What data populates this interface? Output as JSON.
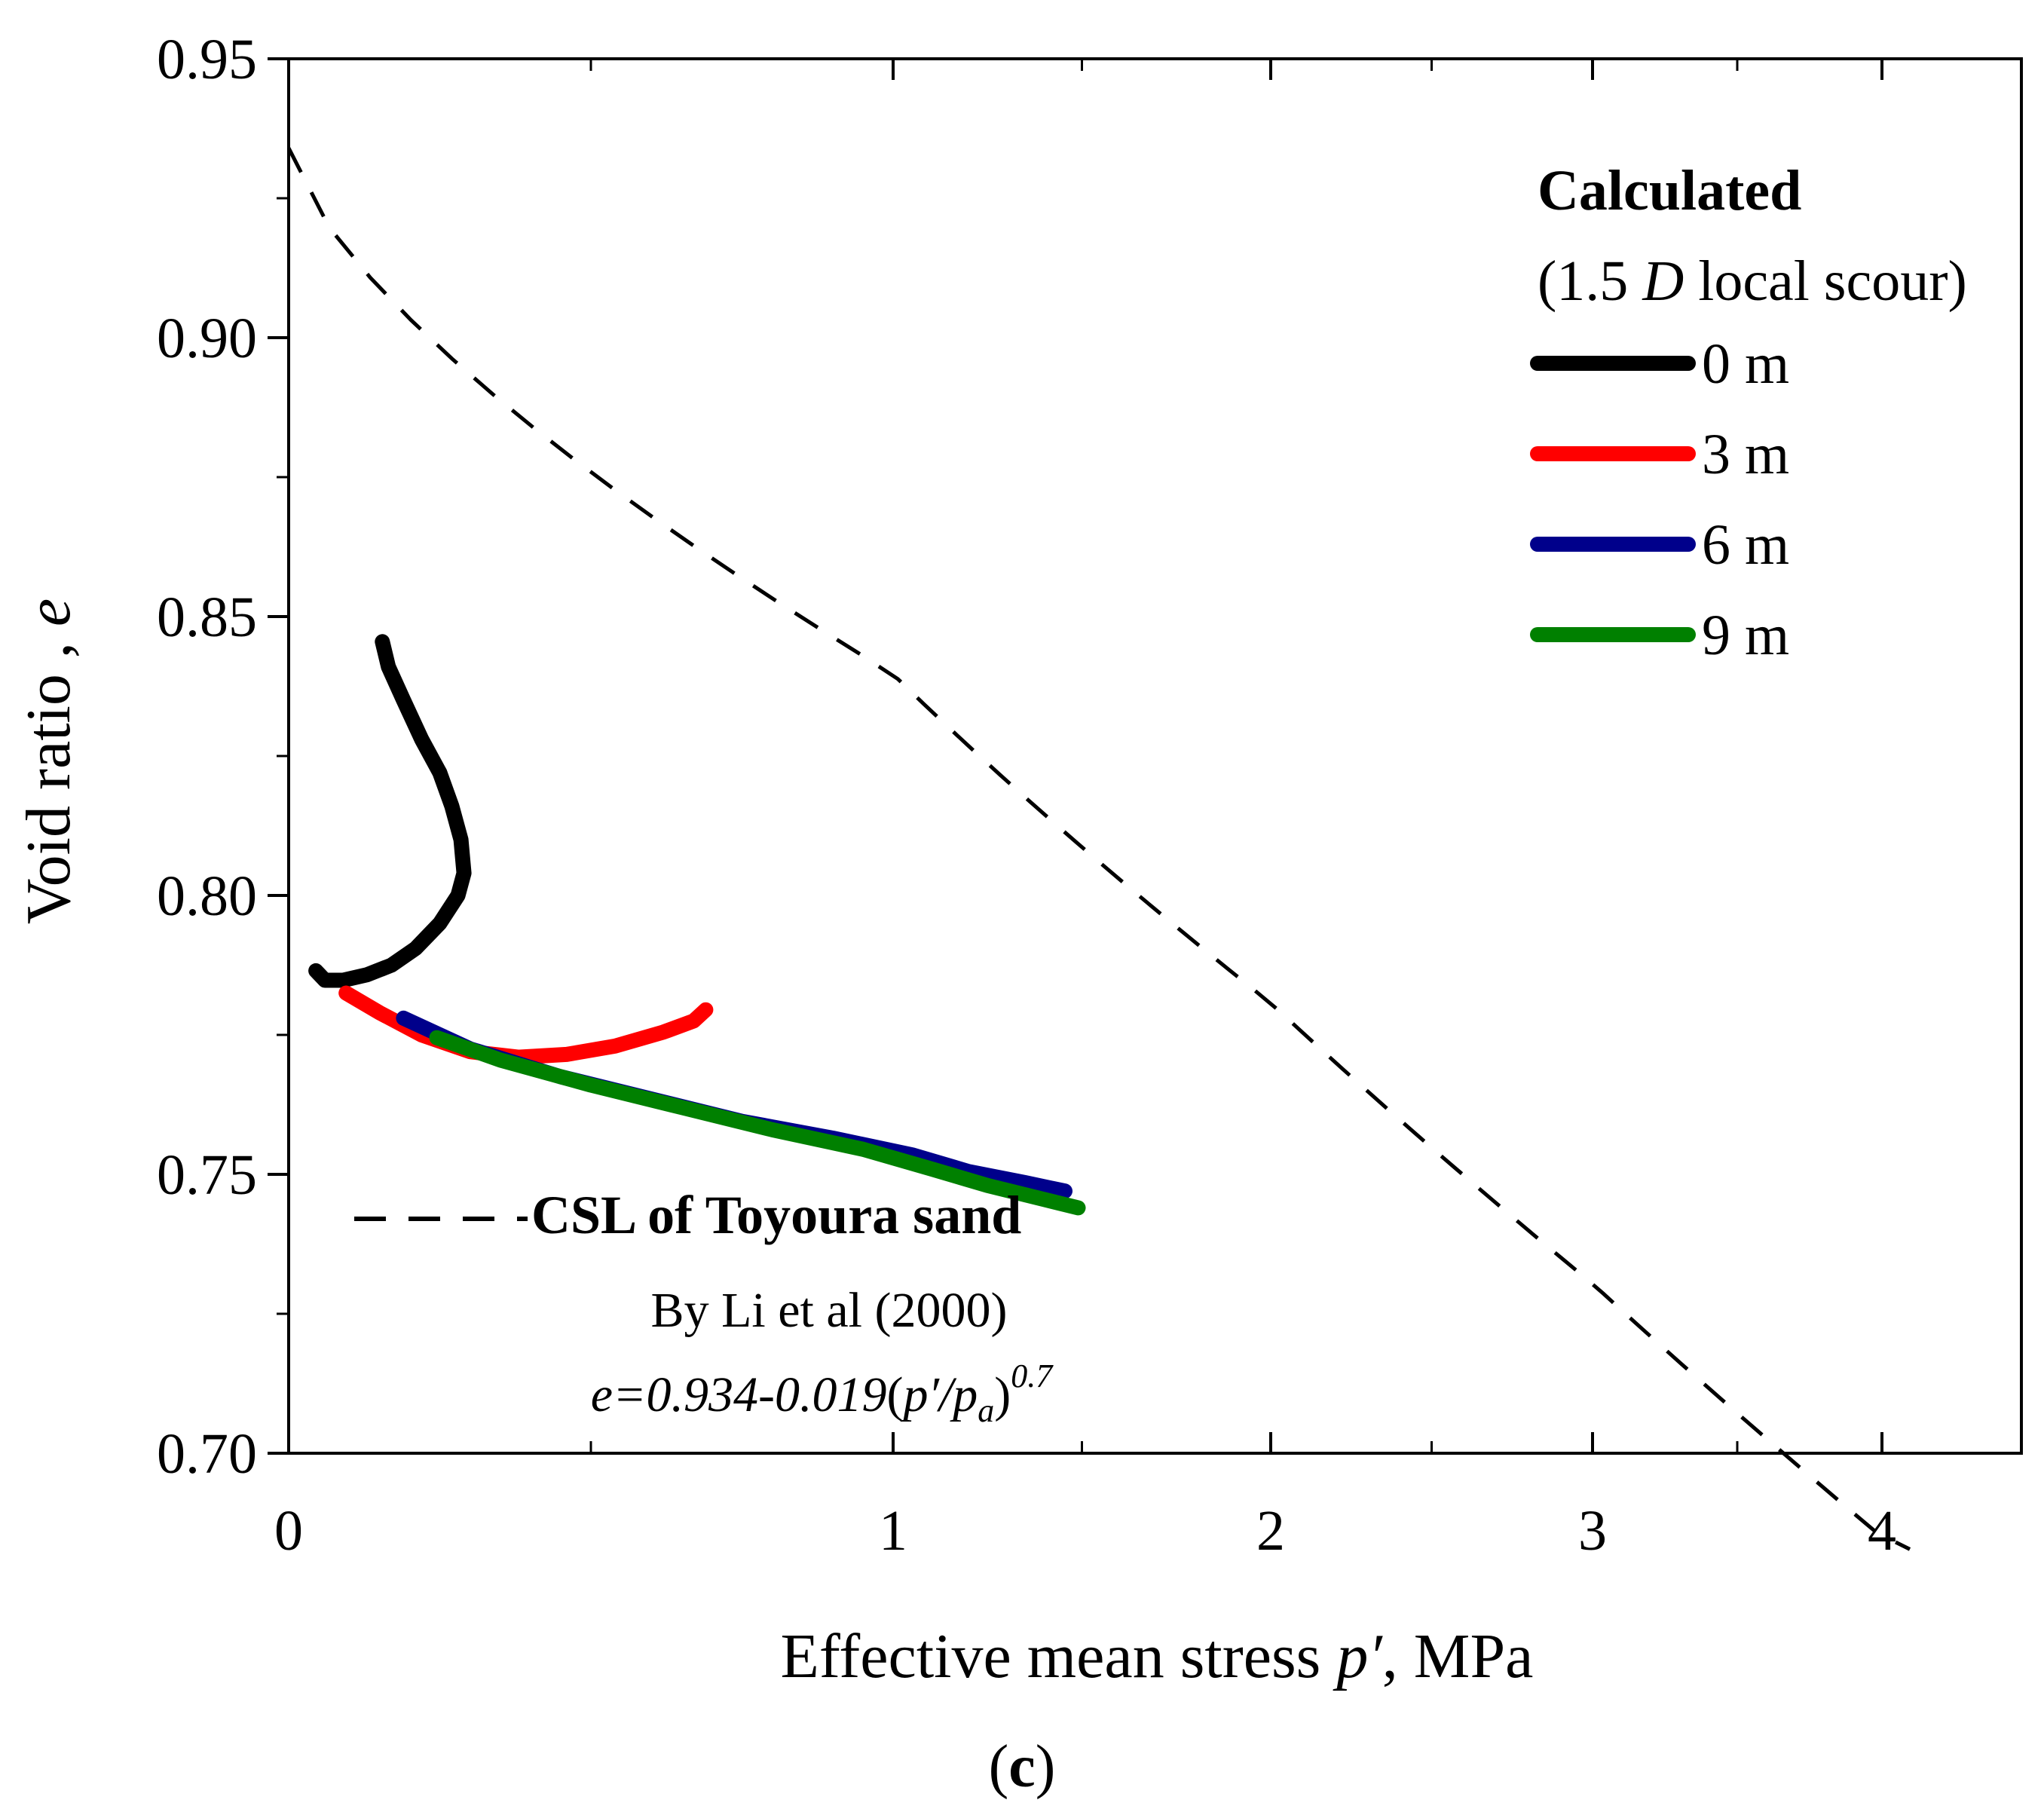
{
  "chart_data": {
    "type": "line",
    "xlabel_main": "Effective mean stress ",
    "xlabel_var": "p′",
    "xlabel_unit": ", MPa",
    "ylabel_main": "Void ratio , ",
    "ylabel_var": "e",
    "xlim": [
      0,
      4.25
    ],
    "ylim": [
      0.7,
      0.95
    ],
    "x_ticks": [
      "0",
      "1",
      "2",
      "3",
      "4"
    ],
    "y_ticks": [
      "0.70",
      "0.75",
      "0.80",
      "0.85",
      "0.90",
      "0.95"
    ],
    "legend": {
      "title": "Calculated",
      "subtitle_pre": "(1.5 ",
      "subtitle_var": "D",
      "subtitle_post": " local scour)",
      "placement": "top-right"
    },
    "series": [
      {
        "name": "0 m",
        "color": "#000000",
        "x": [
          0.045,
          0.06,
          0.09,
          0.13,
          0.17,
          0.21,
          0.25,
          0.28,
          0.29,
          0.285,
          0.27,
          0.25,
          0.22,
          0.19,
          0.165,
          0.155
        ],
        "y": [
          0.7865,
          0.7848,
          0.7848,
          0.7858,
          0.7875,
          0.7905,
          0.795,
          0.8,
          0.804,
          0.81,
          0.816,
          0.822,
          0.828,
          0.835,
          0.841,
          0.8455
        ]
      },
      {
        "name": "3 m",
        "color": "#ff0000",
        "x": [
          0.095,
          0.15,
          0.22,
          0.3,
          0.38,
          0.46,
          0.54,
          0.62,
          0.67,
          0.69
        ],
        "y": [
          0.7825,
          0.779,
          0.775,
          0.772,
          0.771,
          0.7715,
          0.773,
          0.7755,
          0.7775,
          0.7795
        ]
      },
      {
        "name": "6 m",
        "color": "#00008b",
        "x": [
          0.19,
          0.3,
          0.45,
          0.6,
          0.75,
          0.9,
          1.05,
          1.2,
          1.35,
          1.455
        ],
        "y": [
          0.778,
          0.7725,
          0.7675,
          0.7635,
          0.7595,
          0.7565,
          0.7535,
          0.7505,
          0.7485,
          0.747
        ]
      },
      {
        "name": "9 m",
        "color": "#008000",
        "x": [
          0.245,
          0.35,
          0.5,
          0.65,
          0.8,
          0.95,
          1.1,
          1.25,
          1.4,
          1.49
        ],
        "y": [
          0.7745,
          0.7705,
          0.766,
          0.762,
          0.758,
          0.7545,
          0.751,
          0.748,
          0.7455,
          0.744
        ]
      }
    ],
    "csl": {
      "style": "dashed",
      "color": "#000000",
      "label": "CSL of Toyoura sand",
      "source": "By Li et al (2000)",
      "eq_a": "e=0.934-0.019",
      "eq_b": "(",
      "eq_c": "p′/p",
      "eq_d": "a",
      "eq_e": ")",
      "eq_exp": "0.7",
      "intercept": 0.934,
      "coef": 0.019,
      "exponent": 0.7,
      "p_range": [
        0,
        4.05
      ]
    },
    "panel_label_pre": "(",
    "panel_label_bold": "c",
    "panel_label_post": ")"
  }
}
